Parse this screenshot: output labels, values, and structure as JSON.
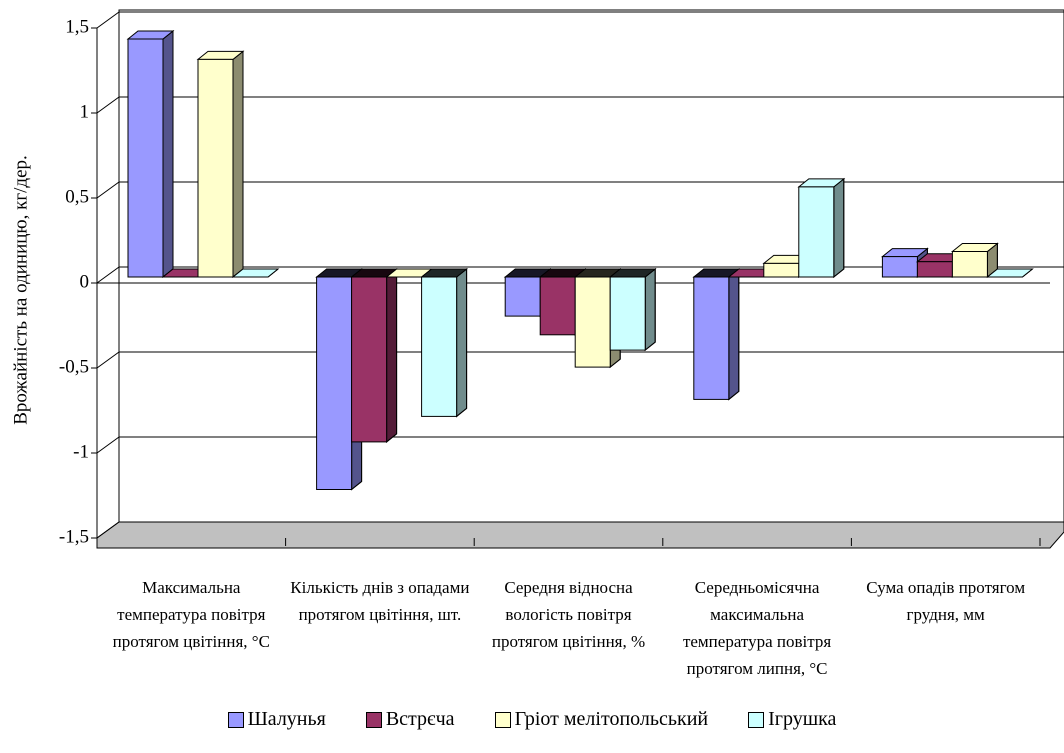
{
  "chart_data": {
    "type": "bar3d",
    "y_label": "Врожайність на одиницю, кг/дер.",
    "categories": [
      "Максимальна температура повітря протягом цвітіння, °С",
      "Кількість днів з опадами протягом цвітіння, шт.",
      "Середня відносна вологість повітря протягом цвітіння, %",
      "Середньомісячна максимальна температура повітря протягом липня, °С",
      "Сума опадів протягом грудня, мм"
    ],
    "series": [
      {
        "name": "Шалунья",
        "color": "#9999ff",
        "values": [
          1.4,
          -1.25,
          -0.23,
          -0.72,
          0.12
        ]
      },
      {
        "name": "Встрєча",
        "color": "#993366",
        "values": [
          0,
          -0.97,
          -0.34,
          0,
          0.09
        ]
      },
      {
        "name": "Гріот мелітопольський",
        "color": "#ffffcc",
        "values": [
          1.28,
          0,
          -0.53,
          0.08,
          0.15
        ]
      },
      {
        "name": "Ігрушка",
        "color": "#ccffff",
        "values": [
          0,
          -0.82,
          -0.43,
          0.53,
          0
        ]
      }
    ],
    "ylim": [
      -1.5,
      1.5
    ],
    "yticks": [
      {
        "value": -1.5,
        "label": "-1,5"
      },
      -1,
      {
        "value": -0.5,
        "label": "-0,5"
      },
      0,
      {
        "value": 0.5,
        "label": "0,5"
      },
      1,
      {
        "value": 1.5,
        "label": "1,5"
      }
    ],
    "grid": true,
    "legend": "bottom"
  }
}
